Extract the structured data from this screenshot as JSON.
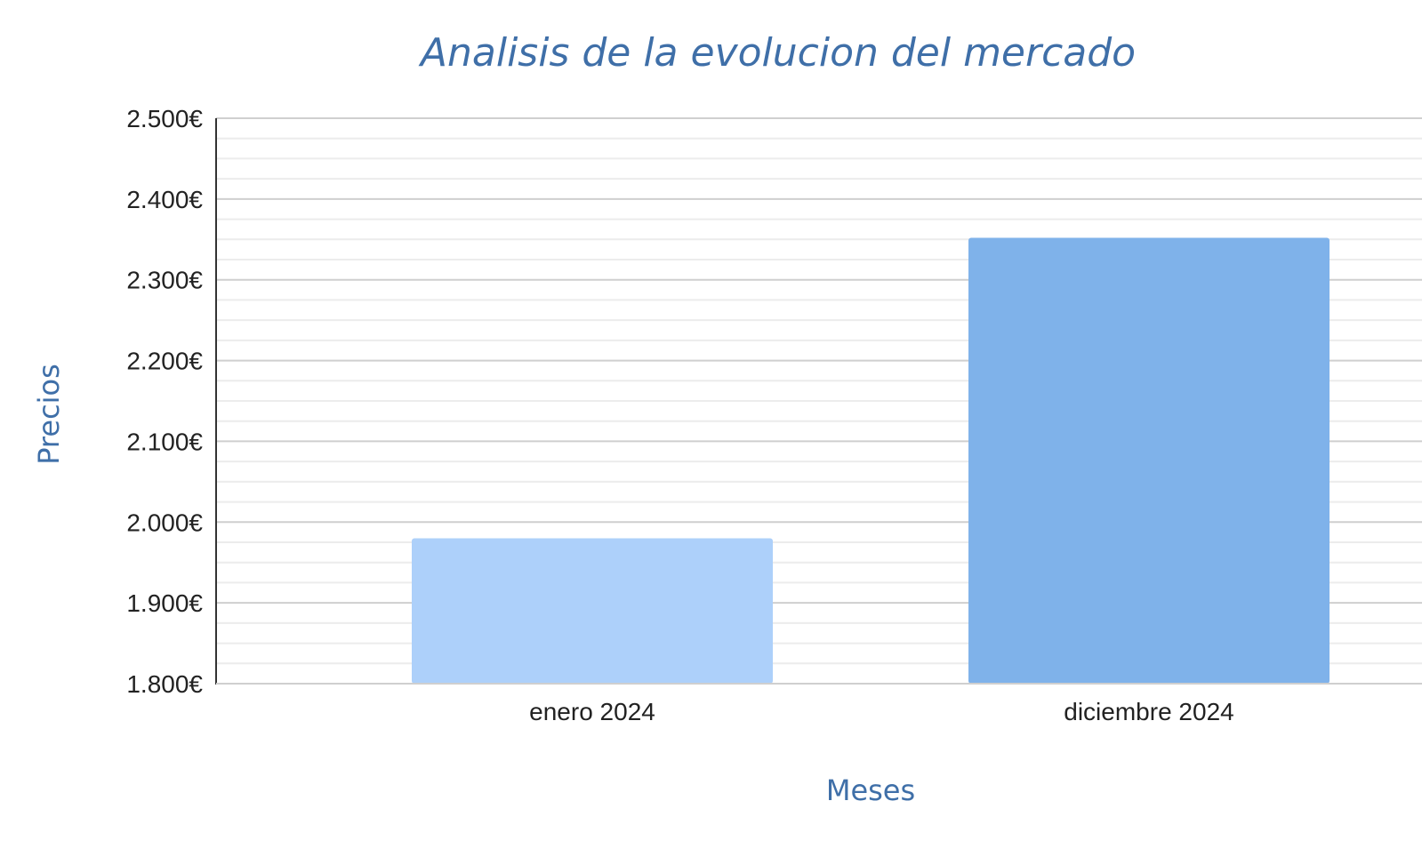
{
  "colors": {
    "title": "#3f6fa8",
    "axis_title": "#3f6fa8",
    "major_grid": "#cfcfcf",
    "minor_grid": "#ececec",
    "axis_line": "#333333",
    "bars": [
      "#add0fa",
      "#7fb2ea"
    ]
  },
  "chart_data": {
    "type": "bar",
    "title": "Analisis de la evolucion del mercado",
    "xlabel": "Meses",
    "ylabel": "Precios",
    "categories": [
      "enero 2024",
      "diciembre 2024"
    ],
    "values": [
      1980,
      2352
    ],
    "ylim": [
      1800,
      2500
    ],
    "y_ticks": [
      1800,
      1900,
      2000,
      2100,
      2200,
      2300,
      2400,
      2500
    ],
    "y_tick_labels": [
      "1.800€",
      "1.900€",
      "2.000€",
      "2.100€",
      "2.200€",
      "2.300€",
      "2.400€",
      "2.500€"
    ],
    "y_minor_per_major": 3,
    "grid": true,
    "legend": "none"
  }
}
